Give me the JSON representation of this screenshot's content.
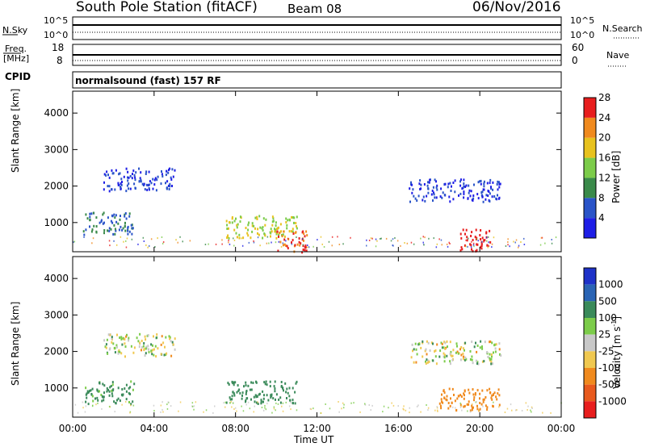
{
  "header": {
    "station": "South Pole Station (fitACF)",
    "beam": "Beam 08",
    "date": "06/Nov/2016"
  },
  "status_panels": {
    "nsky": {
      "label": "N.Sky",
      "ticks": [
        "10^5",
        "10^0"
      ],
      "right_label": "N.Search",
      "right_ticks": [
        "10^5",
        "10^0"
      ]
    },
    "freq": {
      "label_lines": [
        "Freq.",
        "[MHz]"
      ],
      "ticks": [
        "18",
        "8"
      ],
      "right_label": "Nave",
      "right_ticks": [
        "60",
        "0"
      ]
    },
    "cpid": {
      "label": "CPID",
      "program": "normalsound (fast) 157 RF"
    }
  },
  "chart_data": [
    {
      "type": "heatmap",
      "title": "",
      "xlabel": "Time UT",
      "ylabel": "Slant Range [km]",
      "x_ticks": [
        "00:00",
        "04:00",
        "08:00",
        "12:00",
        "16:00",
        "20:00",
        "00:00"
      ],
      "y_ticks": [
        "1000",
        "2000",
        "3000",
        "4000"
      ],
      "ylim": [
        200,
        4600
      ],
      "colorbar": {
        "label": "Power [dB]",
        "ticks": [
          "4",
          "8",
          "12",
          "16",
          "20",
          "24",
          "28"
        ],
        "colors": [
          "#1e1ee6",
          "#2a54c8",
          "#3a8a4a",
          "#7ccc4a",
          "#e8c21e",
          "#f08a1e",
          "#e81e1e"
        ]
      },
      "echo_regions": [
        {
          "t_start": "01:30",
          "t_end": "05:00",
          "range_km": 2200,
          "power_db": 6
        },
        {
          "t_start": "00:30",
          "t_end": "03:00",
          "range_km": 1000,
          "power_db": 10
        },
        {
          "t_start": "07:30",
          "t_end": "11:00",
          "range_km": 900,
          "power_db": 18
        },
        {
          "t_start": "10:00",
          "t_end": "11:30",
          "range_km": 500,
          "power_db": 26
        },
        {
          "t_start": "19:00",
          "t_end": "20:30",
          "range_km": 550,
          "power_db": 30
        },
        {
          "t_start": "16:30",
          "t_end": "21:00",
          "range_km": 1900,
          "power_db": 6
        }
      ]
    },
    {
      "type": "heatmap",
      "title": "",
      "xlabel": "Time UT",
      "ylabel": "Slant Range [km]",
      "x_ticks": [
        "00:00",
        "04:00",
        "08:00",
        "12:00",
        "16:00",
        "20:00",
        "00:00"
      ],
      "y_ticks": [
        "1000",
        "2000",
        "3000",
        "4000"
      ],
      "ylim": [
        200,
        4600
      ],
      "colorbar": {
        "label_main": "Velocity",
        "label_unit": "[m s",
        "label_exp": "-1",
        "label_close": "]",
        "ticks": [
          "1000",
          "500",
          "100",
          "25",
          "-25",
          "-100",
          "-500",
          "-1000"
        ],
        "colors": [
          "#1e32c8",
          "#2a64b4",
          "#3a8a5a",
          "#7ccc4a",
          "#c8c8c8",
          "#f0c850",
          "#f08a1e",
          "#e85a1e",
          "#e81e1e"
        ]
      },
      "echo_regions": [
        {
          "t_start": "01:30",
          "t_end": "05:00",
          "range_km": 2200,
          "velocity_ms": 0
        },
        {
          "t_start": "00:30",
          "t_end": "03:00",
          "range_km": 900,
          "velocity_ms": 200
        },
        {
          "t_start": "07:30",
          "t_end": "11:00",
          "range_km": 900,
          "velocity_ms": 300
        },
        {
          "t_start": "18:00",
          "t_end": "21:00",
          "range_km": 700,
          "velocity_ms": -300
        },
        {
          "t_start": "16:30",
          "t_end": "21:00",
          "range_km": 2000,
          "velocity_ms": 0
        }
      ]
    }
  ]
}
